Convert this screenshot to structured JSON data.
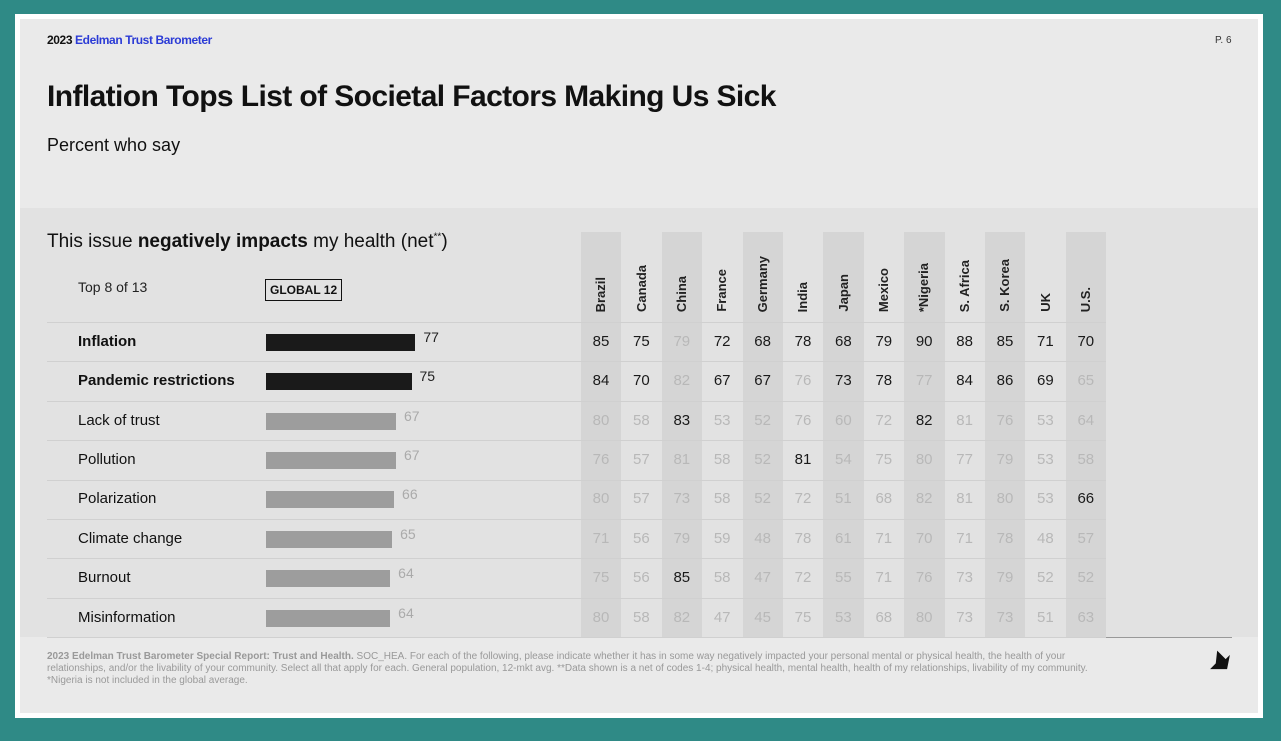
{
  "header": {
    "year": "2023",
    "brand": "Edelman Trust Barometer",
    "page": "P. 6"
  },
  "title": "Inflation Tops List of Societal Factors Making Us Sick",
  "subtitle": "Percent who say",
  "table": {
    "heading": [
      "This issue ",
      "negatively impacts",
      " my health (net",
      "**",
      ")"
    ],
    "subset": "Top 8 of 13",
    "global": "GLOBAL 12",
    "xlim": [
      0,
      100
    ],
    "countries": [
      "Brazil",
      "Canada",
      "China",
      "France",
      "Germany",
      "India",
      "Japan",
      "Mexico",
      "*Nigeria",
      "S. Africa",
      "S. Korea",
      "UK",
      "U.S."
    ],
    "rows": [
      {
        "label": "Inflation",
        "bold": true,
        "global": 77,
        "values": [
          85,
          75,
          79,
          72,
          68,
          78,
          68,
          79,
          90,
          88,
          85,
          71,
          70
        ],
        "dark": [
          true,
          true,
          false,
          true,
          true,
          true,
          true,
          true,
          true,
          true,
          true,
          true,
          true
        ]
      },
      {
        "label": "Pandemic restrictions",
        "bold": true,
        "global": 75,
        "values": [
          84,
          70,
          82,
          67,
          67,
          76,
          73,
          78,
          77,
          84,
          86,
          69,
          65
        ],
        "dark": [
          true,
          true,
          false,
          true,
          true,
          false,
          true,
          true,
          false,
          true,
          true,
          true,
          false
        ]
      },
      {
        "label": "Lack of trust",
        "bold": false,
        "global": 67,
        "values": [
          80,
          58,
          83,
          53,
          52,
          76,
          60,
          72,
          82,
          81,
          76,
          53,
          64
        ],
        "dark": [
          false,
          false,
          true,
          false,
          false,
          false,
          false,
          false,
          true,
          false,
          false,
          false,
          false
        ]
      },
      {
        "label": "Pollution",
        "bold": false,
        "global": 67,
        "values": [
          76,
          57,
          81,
          58,
          52,
          81,
          54,
          75,
          80,
          77,
          79,
          53,
          58
        ],
        "dark": [
          false,
          false,
          false,
          false,
          false,
          true,
          false,
          false,
          false,
          false,
          false,
          false,
          false
        ]
      },
      {
        "label": "Polarization",
        "bold": false,
        "global": 66,
        "values": [
          80,
          57,
          73,
          58,
          52,
          72,
          51,
          68,
          82,
          81,
          80,
          53,
          66
        ],
        "dark": [
          false,
          false,
          false,
          false,
          false,
          false,
          false,
          false,
          false,
          false,
          false,
          false,
          true
        ]
      },
      {
        "label": "Climate change",
        "bold": false,
        "global": 65,
        "values": [
          71,
          56,
          79,
          59,
          48,
          78,
          61,
          71,
          70,
          71,
          78,
          48,
          57
        ],
        "dark": [
          false,
          false,
          false,
          false,
          false,
          false,
          false,
          false,
          false,
          false,
          false,
          false,
          false
        ]
      },
      {
        "label": "Burnout",
        "bold": false,
        "global": 64,
        "values": [
          75,
          56,
          85,
          58,
          47,
          72,
          55,
          71,
          76,
          73,
          79,
          52,
          52
        ],
        "dark": [
          false,
          false,
          true,
          false,
          false,
          false,
          false,
          false,
          false,
          false,
          false,
          false,
          false
        ]
      },
      {
        "label": "Misinformation",
        "bold": false,
        "global": 64,
        "values": [
          80,
          58,
          82,
          47,
          45,
          75,
          53,
          68,
          80,
          73,
          73,
          51,
          63
        ],
        "dark": [
          false,
          false,
          false,
          false,
          false,
          false,
          false,
          false,
          false,
          false,
          false,
          false,
          false
        ]
      }
    ]
  },
  "footnote": {
    "source": "2023 Edelman Trust Barometer Special Report: Trust and Health.",
    "text": "SOC_HEA. For each of the following, please indicate whether it has in some way negatively impacted your personal mental or physical health, the health of your relationships, and/or the livability of your community. Select all that apply for each. General population, 12-mkt avg. **Data shown is a net of codes 1-4; physical health, mental health, health of my relationships, livability of my community. *Nigeria is not included in the global average."
  }
}
